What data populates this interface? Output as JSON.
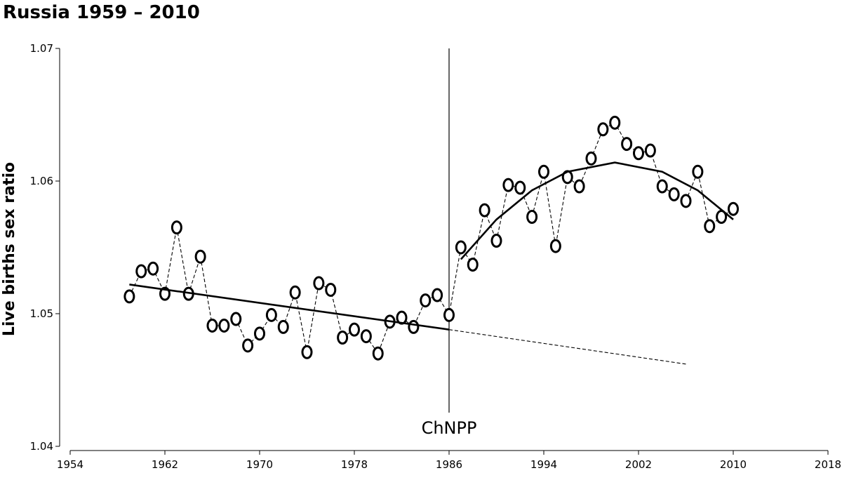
{
  "chart_data": {
    "type": "line",
    "title": "Russia 1959  –   2010",
    "ylabel": "Live births sex ratio",
    "xlim": [
      1954,
      2018
    ],
    "xticks": [
      1954,
      1962,
      1970,
      1978,
      1986,
      1994,
      2002,
      2010,
      2018
    ],
    "ylim": [
      1.04,
      1.07
    ],
    "yticks": [
      1.04,
      1.05,
      1.06,
      1.07
    ],
    "vline": {
      "x": 1986,
      "label": "ChNPP"
    },
    "series": [
      {
        "style": "dashed-markers",
        "color": "#000000",
        "x": [
          1959,
          1960,
          1961,
          1962,
          1963,
          1964,
          1965,
          1966,
          1967,
          1968,
          1969,
          1970,
          1971,
          1972,
          1973,
          1974,
          1975,
          1976,
          1977,
          1978,
          1979,
          1980,
          1981,
          1982,
          1983,
          1984,
          1985,
          1986,
          1987,
          1988,
          1989,
          1990,
          1991,
          1992,
          1993,
          1994,
          1995,
          1996,
          1997,
          1998,
          1999,
          2000,
          2001,
          2002,
          2003,
          2004,
          2005,
          2006,
          2007,
          2008,
          2009,
          2010
        ],
        "values": [
          1.0513,
          1.0532,
          1.0534,
          1.0515,
          1.0565,
          1.0515,
          1.0543,
          1.0491,
          1.0491,
          1.0496,
          1.0476,
          1.0485,
          1.0499,
          1.049,
          1.0516,
          1.0471,
          1.0523,
          1.0518,
          1.0482,
          1.0488,
          1.0483,
          1.047,
          1.0494,
          1.0497,
          1.049,
          1.051,
          1.0514,
          1.0499,
          1.055,
          1.0537,
          1.0578,
          1.0555,
          1.0597,
          1.0595,
          1.0573,
          1.0607,
          1.0551,
          1.0603,
          1.0596,
          1.0617,
          1.0639,
          1.0644,
          1.0628,
          1.0621,
          1.0623,
          1.0596,
          1.059,
          1.0585,
          1.0607,
          1.0566,
          1.0573,
          1.0579
        ]
      },
      {
        "style": "solid",
        "color": "#000000",
        "x": [
          1959,
          1986
        ],
        "values": [
          1.0522,
          1.0488
        ]
      },
      {
        "style": "dashed",
        "color": "#000000",
        "x": [
          1986,
          2006
        ],
        "values": [
          1.0488,
          1.0462
        ]
      },
      {
        "style": "solid",
        "color": "#000000",
        "x": [
          1987,
          1990,
          1993,
          1996,
          2000,
          2004,
          2007,
          2010
        ],
        "values": [
          1.0541,
          1.0571,
          1.0593,
          1.0607,
          1.0614,
          1.0607,
          1.0593,
          1.0571
        ]
      }
    ]
  }
}
